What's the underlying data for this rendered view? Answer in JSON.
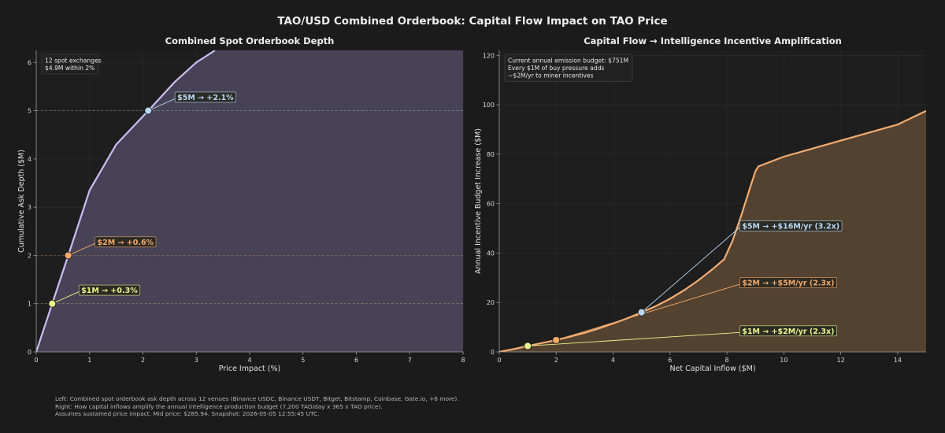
{
  "title": "TAO/USD Combined Orderbook: Capital Flow Impact on TAO Price",
  "footer": [
    "Left: Combined spot orderbook ask depth across 12 venues (Binance USDC, Binance USDT, Bitget, Bitstamp, Coinbase, Gate.io, +6 more).",
    "Right: How capital inflows amplify the annual intelligence production budget (7,200 TAO/day x 365 x TAO price).",
    "Assumes sustained price impact. Mid price: $285.94. Snapshot: 2026-05-05 12:55:45 UTC."
  ],
  "colors": {
    "background": "#1b1b1b",
    "left_line": "#c9bff2",
    "left_fill": "#4a4458",
    "right_line": "#f2ad72",
    "right_fill": "#574532",
    "ann_yellow": "#e6f58c",
    "ann_orange": "#f4a868",
    "ann_blue": "#b8d8f4"
  },
  "chart_data": [
    {
      "type": "area",
      "title": "Combined Spot Orderbook Depth",
      "xlabel": "Price Impact (%)",
      "ylabel": "Cumulative Ask Depth ($M)",
      "xlim": [
        0,
        8
      ],
      "ylim": [
        0,
        6.25
      ],
      "xticks": [
        "0",
        "1",
        "2",
        "3",
        "4",
        "5",
        "6",
        "7",
        "8"
      ],
      "yticks": [
        "0",
        "1",
        "2",
        "3",
        "4",
        "5",
        "6"
      ],
      "grid": true,
      "series": [
        {
          "x": [
            0,
            0.3,
            0.6,
            1.0,
            1.5,
            2.1,
            2.6,
            3.0,
            3.35
          ],
          "y": [
            0,
            1.0,
            2.0,
            3.35,
            4.3,
            5.0,
            5.6,
            6.0,
            6.25
          ]
        }
      ],
      "info_box": [
        "12 spot exchanges",
        "$4.9M within 2%"
      ],
      "markers": [
        {
          "x": 0.3,
          "y": 1.0,
          "label": "$1M → +0.3%",
          "color": "#e6f58c",
          "label_x": 0.8,
          "label_y": 1.28
        },
        {
          "x": 0.6,
          "y": 2.0,
          "label": "$2M → +0.6%",
          "color": "#f4a868",
          "label_x": 1.1,
          "label_y": 2.28
        },
        {
          "x": 2.1,
          "y": 5.0,
          "label": "$5M → +2.1%",
          "color": "#b8d8f4",
          "label_x": 2.6,
          "label_y": 5.28
        }
      ]
    },
    {
      "type": "area",
      "title": "Capital Flow → Intelligence Incentive Amplification",
      "xlabel": "Net Capital Inflow ($M)",
      "ylabel": "Annual Incentive Budget Increase ($M)",
      "xlim": [
        0,
        15
      ],
      "ylim": [
        0,
        122
      ],
      "xticks": [
        "0",
        "2",
        "4",
        "6",
        "8",
        "10",
        "12",
        "14"
      ],
      "yticks": [
        "0",
        "20",
        "40",
        "60",
        "80",
        "100",
        "120"
      ],
      "grid": true,
      "series": [
        {
          "x": [
            0,
            0.5,
            1,
            1.5,
            2,
            2.5,
            3,
            3.5,
            4,
            4.5,
            5,
            5.5,
            6,
            6.5,
            7,
            7.5,
            7.9,
            8.2,
            8.5,
            8.8,
            9.0,
            9.1,
            10,
            12,
            14,
            15
          ],
          "y": [
            0,
            1.1,
            2.4,
            3.6,
            4.8,
            6.2,
            7.7,
            9.5,
            11.5,
            13.6,
            16.0,
            18.5,
            21.5,
            25,
            29,
            33.5,
            37.5,
            45,
            55,
            66,
            73,
            75,
            79,
            85.5,
            92,
            97.5
          ]
        }
      ],
      "info_box": [
        "Current annual emission budget: $751M",
        "Every $1M of buy pressure adds",
        "~$2M/yr to miner incentives"
      ],
      "markers": [
        {
          "x": 1,
          "y": 2.4,
          "label": "$1M → +$2M/yr (2.3x)",
          "color": "#e6f58c",
          "label_x": 8.45,
          "label_y": 8.5
        },
        {
          "x": 2,
          "y": 4.8,
          "label": "$2M → +$5M/yr (2.3x)",
          "color": "#f4a868",
          "label_x": 8.45,
          "label_y": 28.0
        },
        {
          "x": 5,
          "y": 16.0,
          "label": "$5M → +$16M/yr (3.2x)",
          "color": "#b8d8f4",
          "label_x": 8.45,
          "label_y": 51.0
        }
      ]
    }
  ]
}
